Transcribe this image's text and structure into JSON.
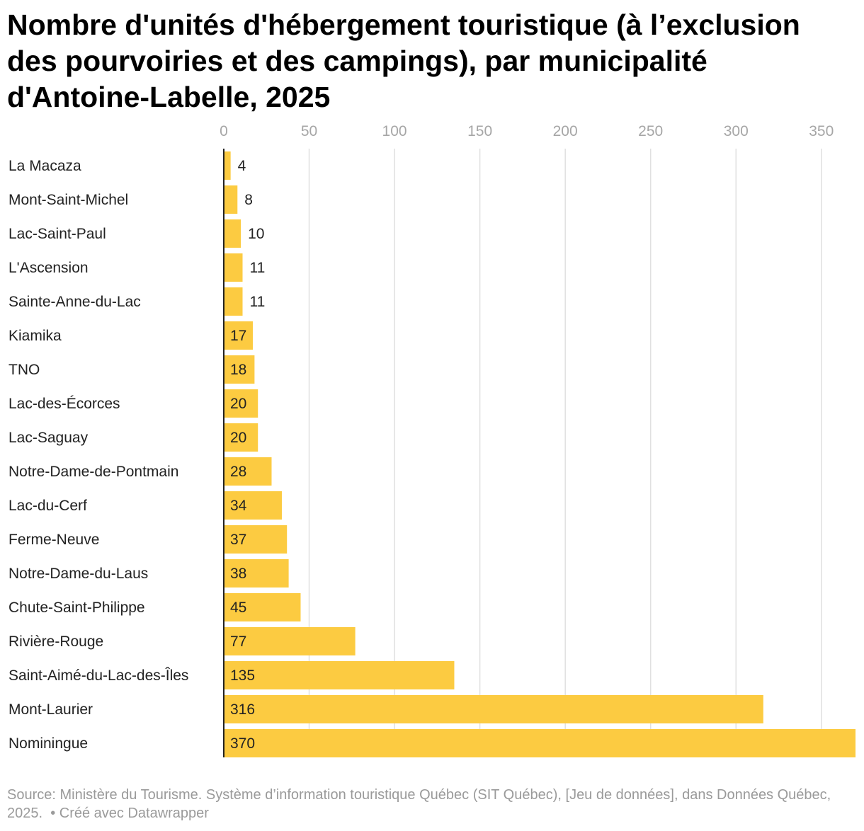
{
  "title": "Nombre d'unités d'hébergement touristique (à l’exclusion des pourvoiries et des campings), par municipalité d'Antoine-Labelle, 2025",
  "footer": {
    "source": "Source: Ministère du Tourisme. Système d’information touristique Québec (SIT Québec), [Jeu de données], dans Données Québec, 2025.",
    "credit": "• Créé avec Datawrapper"
  },
  "colors": {
    "bar": "#fccb41",
    "grid": "#e0e0e0",
    "axis": "#222222"
  },
  "chart_data": {
    "type": "bar",
    "orientation": "horizontal",
    "categories": [
      "La Macaza",
      "Mont-Saint-Michel",
      "Lac-Saint-Paul",
      "L'Ascension",
      "Sainte-Anne-du-Lac",
      "Kiamika",
      "TNO",
      "Lac-des-Écorces",
      "Lac-Saguay",
      "Notre-Dame-de-Pontmain",
      "Lac-du-Cerf",
      "Ferme-Neuve",
      "Notre-Dame-du-Laus",
      "Chute-Saint-Philippe",
      "Rivière-Rouge",
      "Saint-Aimé-du-Lac-des-Îles",
      "Mont-Laurier",
      "Nominingue"
    ],
    "values": [
      4,
      8,
      10,
      11,
      11,
      17,
      18,
      20,
      20,
      28,
      34,
      37,
      38,
      45,
      77,
      135,
      316,
      370
    ],
    "xlim": [
      0,
      370
    ],
    "xticks": [
      0,
      50,
      100,
      150,
      200,
      250,
      300,
      350
    ],
    "grid": true,
    "axis_position": "top"
  }
}
